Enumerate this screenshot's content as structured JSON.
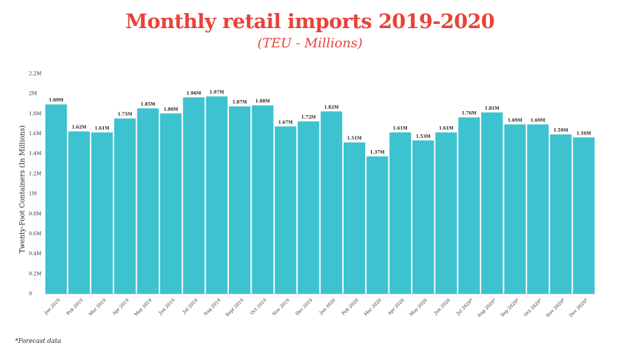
{
  "chart_data": {
    "type": "bar",
    "title": "Monthly retail imports 2019-2020",
    "subtitle": "(TEU - Millions)",
    "ylabel": "Twenty-Foot Containers (In Millions)",
    "xlabel": "",
    "ylim": [
      0,
      2.2
    ],
    "yticks": [
      0,
      0.2,
      0.4,
      0.6,
      0.8,
      1,
      1.2,
      1.4,
      1.6,
      1.8,
      2,
      2.2
    ],
    "ytick_labels": [
      "0",
      "0.2M",
      "0.4M",
      "0.6M",
      "0.8M",
      "1M",
      "1.2M",
      "1.4M",
      "1.6M",
      "1.8M",
      "2M",
      "2.2M"
    ],
    "categories": [
      "Jan 2019",
      "Feb 2019",
      "Mar 2019",
      "Apr 2019",
      "May 2019",
      "Jun 2019",
      "Jul 2019",
      "Aug 2019",
      "Sept 2019",
      "Oct 2019",
      "Nov 2019",
      "Dec 2019",
      "Jan 2020",
      "Feb 2020",
      "Mar 2020",
      "Apr 2020",
      "May 2020",
      "Jun 2020",
      "Jul 2020*",
      "Aug 2020*",
      "Sep 2020*",
      "Oct 2020*",
      "Nov 2020*",
      "Dec 2020*"
    ],
    "values": [
      1.89,
      1.62,
      1.61,
      1.75,
      1.85,
      1.8,
      1.96,
      1.97,
      1.87,
      1.88,
      1.67,
      1.72,
      1.82,
      1.51,
      1.37,
      1.61,
      1.53,
      1.61,
      1.76,
      1.81,
      1.69,
      1.69,
      1.59,
      1.56
    ],
    "data_labels": [
      "1.89M",
      "1.62M",
      "1.61M",
      "1.75M",
      "1.85M",
      "1.80M",
      "1.96M",
      "1.97M",
      "1.87M",
      "1.88M",
      "1.67M",
      "1.72M",
      "1.82M",
      "1.51M",
      "1.37M",
      "1.61M",
      "1.53M",
      "1.61M",
      "1.76M",
      "1.81M",
      "1.69M",
      "1.69M",
      "1.59M",
      "1.56M"
    ],
    "bar_color": "#3dc2cf",
    "grid": false,
    "legend": "none"
  },
  "footnote": "*Forecast data",
  "colors": {
    "title": "#e8433a",
    "bars": "#3dc2cf"
  }
}
